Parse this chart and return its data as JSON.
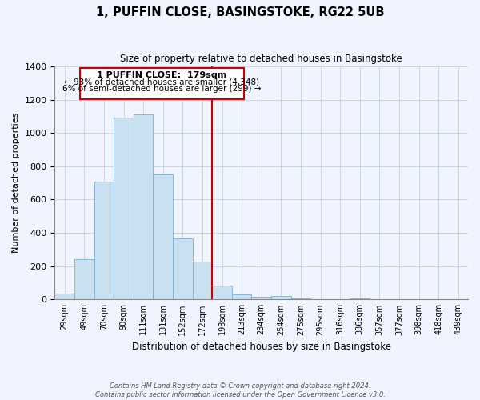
{
  "title": "1, PUFFIN CLOSE, BASINGSTOKE, RG22 5UB",
  "subtitle": "Size of property relative to detached houses in Basingstoke",
  "xlabel": "Distribution of detached houses by size in Basingstoke",
  "ylabel": "Number of detached properties",
  "bar_labels": [
    "29sqm",
    "49sqm",
    "70sqm",
    "90sqm",
    "111sqm",
    "131sqm",
    "152sqm",
    "172sqm",
    "193sqm",
    "213sqm",
    "234sqm",
    "254sqm",
    "275sqm",
    "295sqm",
    "316sqm",
    "336sqm",
    "357sqm",
    "377sqm",
    "398sqm",
    "418sqm",
    "439sqm"
  ],
  "bar_values": [
    35,
    240,
    710,
    1095,
    1110,
    750,
    365,
    225,
    85,
    30,
    15,
    20,
    5,
    0,
    0,
    5,
    0,
    0,
    0,
    0,
    0
  ],
  "bar_color": "#c8e0f0",
  "bar_edge_color": "#7ab0d0",
  "vline_x_index": 7,
  "vline_color": "#cc0000",
  "annotation_title": "1 PUFFIN CLOSE:  179sqm",
  "annotation_line1": "← 93% of detached houses are smaller (4,348)",
  "annotation_line2": "6% of semi-detached houses are larger (299) →",
  "box_edge_color": "#cc0000",
  "ylim": [
    0,
    1400
  ],
  "yticks": [
    0,
    200,
    400,
    600,
    800,
    1000,
    1200,
    1400
  ],
  "footnote1": "Contains HM Land Registry data © Crown copyright and database right 2024.",
  "footnote2": "Contains public sector information licensed under the Open Government Licence v3.0.",
  "background_color": "#f0f4ff"
}
